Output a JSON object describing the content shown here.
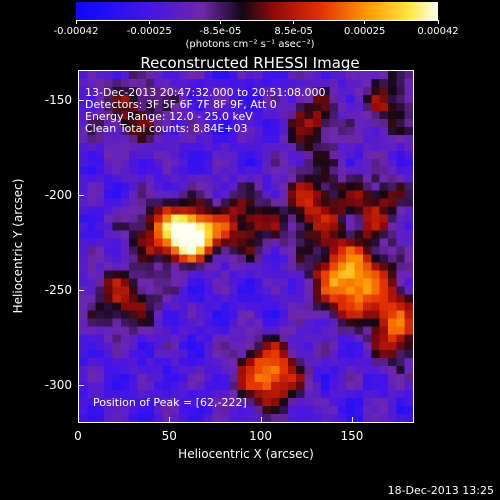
{
  "colorbar": {
    "tick_labels": [
      "-0.00042",
      "-0.00025",
      "-8.5e-05",
      "8.5e-05",
      "0.00025",
      "0.00042"
    ],
    "units": "(photons cm⁻² s⁻¹ asec⁻²)",
    "range": [
      -0.00042,
      0.00042
    ]
  },
  "plot": {
    "title": "Reconstructed RHESSI Image",
    "annotations": [
      "13-Dec-2013 20:47:32.000 to 20:51:08.000",
      "Detectors: 3F 5F 6F 7F 8F 9F, Att 0",
      "Energy Range: 12.0 - 25.0 keV",
      "Clean    Total counts: 8.84E+03"
    ],
    "peak_label": "Position of Peak = [62,-222]"
  },
  "timestamp": "18-Dec-2013 13:25",
  "chart_data": {
    "type": "heatmap",
    "title": "Reconstructed RHESSI Image",
    "xlabel": "Heliocentric X (arcsec)",
    "ylabel": "Heliocentric Y (arcsec)",
    "xlim": [
      0,
      184
    ],
    "ylim": [
      -320,
      -134
    ],
    "xticks": [
      0,
      50,
      100,
      150
    ],
    "yticks": [
      -300,
      -250,
      -200,
      -150
    ],
    "x_tick_labels": [
      "0",
      "50",
      "100",
      "150"
    ],
    "y_tick_labels": [
      "-300",
      "-250",
      "-200",
      "-150"
    ],
    "colormap": "blue-purple-red-yellow-white",
    "peak": [
      62,
      -222
    ],
    "sources": [
      {
        "x": 62,
        "y": -222,
        "w": 9,
        "h": 8,
        "amp": 1.0
      },
      {
        "x": 48,
        "y": -218,
        "w": 14,
        "h": 12,
        "amp": 0.55
      },
      {
        "x": 90,
        "y": -215,
        "w": 14,
        "h": 12,
        "amp": 0.45
      },
      {
        "x": 150,
        "y": -245,
        "w": 14,
        "h": 14,
        "amp": 0.85
      },
      {
        "x": 175,
        "y": -270,
        "w": 9,
        "h": 14,
        "amp": 0.6
      },
      {
        "x": 130,
        "y": -205,
        "w": 12,
        "h": 16,
        "amp": 0.45
      },
      {
        "x": 128,
        "y": -160,
        "w": 10,
        "h": 12,
        "amp": 0.4
      },
      {
        "x": 105,
        "y": -295,
        "w": 12,
        "h": 12,
        "amp": 0.75
      },
      {
        "x": 25,
        "y": -255,
        "w": 14,
        "h": 12,
        "amp": 0.45
      },
      {
        "x": 165,
        "y": -205,
        "w": 12,
        "h": 12,
        "amp": 0.4
      },
      {
        "x": 30,
        "y": -155,
        "w": 16,
        "h": 14,
        "amp": 0.35
      },
      {
        "x": 170,
        "y": -150,
        "w": 12,
        "h": 14,
        "amp": 0.35
      }
    ]
  }
}
